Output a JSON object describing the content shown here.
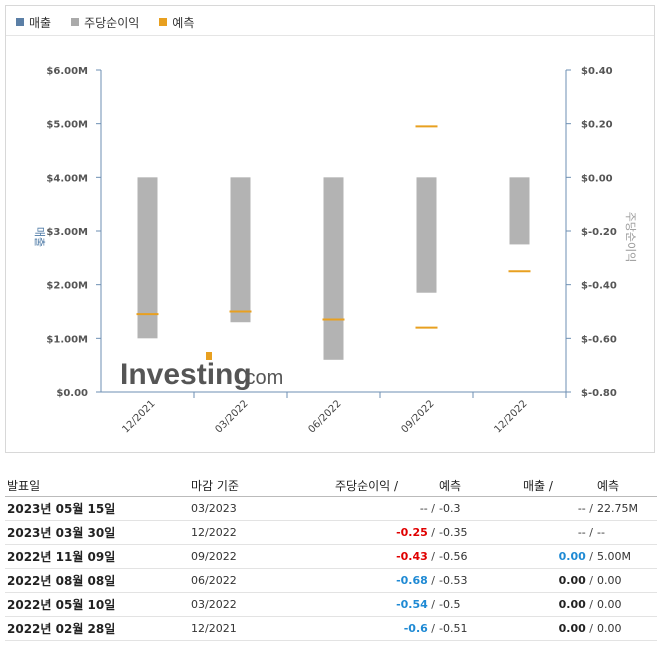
{
  "legend": [
    {
      "label": "매출",
      "color": "#5b7fa6"
    },
    {
      "label": "주당순이익",
      "color": "#aaaaaa"
    },
    {
      "label": "예측",
      "color": "#e8a020"
    }
  ],
  "chart_data": {
    "type": "bar",
    "categories": [
      "12/2021",
      "03/2022",
      "06/2022",
      "09/2022",
      "12/2022"
    ],
    "series": [
      {
        "name": "주당순이익",
        "axis": "right",
        "values": [
          -0.6,
          -0.54,
          -0.68,
          -0.43,
          -0.25
        ],
        "color": "#b3b3b3"
      },
      {
        "name": "예측",
        "axis": "right",
        "values": [
          -0.51,
          -0.5,
          -0.53,
          -0.56,
          -0.35
        ],
        "color": "#e8a020"
      },
      {
        "name": "예측",
        "axis": "right",
        "values": [
          null,
          null,
          null,
          0.19,
          null
        ],
        "color": "#e8a020"
      }
    ],
    "ylabel_left": "매출",
    "ylabel_right": "주당순이익",
    "ylim_left": [
      0,
      6
    ],
    "ylim_right": [
      -0.8,
      0.4
    ],
    "yticks_left": [
      "$0.00",
      "$1.00M",
      "$2.00M",
      "$3.00M",
      "$4.00M",
      "$5.00M",
      "$6.00M"
    ],
    "yticks_right": [
      "$-0.80",
      "$-0.60",
      "$-0.40",
      "$-0.20",
      "$0.00",
      "$0.20",
      "$0.40"
    ],
    "watermark_brand": "Investing",
    "watermark_suffix": ".com",
    "grid": false
  },
  "table": {
    "headers": {
      "date": "발표일",
      "period": "마감 기준",
      "eps": "주당순이익 /",
      "eps_fc": "예측",
      "rev": "매출 /",
      "rev_fc": "예측"
    },
    "rows": [
      {
        "date": "2023년 05월 15일",
        "period": "03/2023",
        "eps": "--",
        "eps_cls": "plain",
        "eps_fc": "-0.3",
        "rev": "--",
        "rev_cls": "plain",
        "rev_fc": "22.75M"
      },
      {
        "date": "2023년 03월 30일",
        "period": "12/2022",
        "eps": "-0.25",
        "eps_cls": "neg",
        "eps_fc": "-0.35",
        "rev": "--",
        "rev_cls": "plain",
        "rev_fc": "--"
      },
      {
        "date": "2022년 11월 09일",
        "period": "09/2022",
        "eps": "-0.43",
        "eps_cls": "neg",
        "eps_fc": "-0.56",
        "rev": "0.00",
        "rev_cls": "pos",
        "rev_fc": "5.00M"
      },
      {
        "date": "2022년 08월 08일",
        "period": "06/2022",
        "eps": "-0.68",
        "eps_cls": "pos",
        "eps_fc": "-0.53",
        "rev": "0.00",
        "rev_cls": "neu",
        "rev_fc": "0.00"
      },
      {
        "date": "2022년 05월 10일",
        "period": "03/2022",
        "eps": "-0.54",
        "eps_cls": "pos",
        "eps_fc": "-0.5",
        "rev": "0.00",
        "rev_cls": "neu",
        "rev_fc": "0.00"
      },
      {
        "date": "2022년 02월 28일",
        "period": "12/2021",
        "eps": "-0.6",
        "eps_cls": "pos",
        "eps_fc": "-0.51",
        "rev": "0.00",
        "rev_cls": "neu",
        "rev_fc": "0.00"
      }
    ]
  }
}
